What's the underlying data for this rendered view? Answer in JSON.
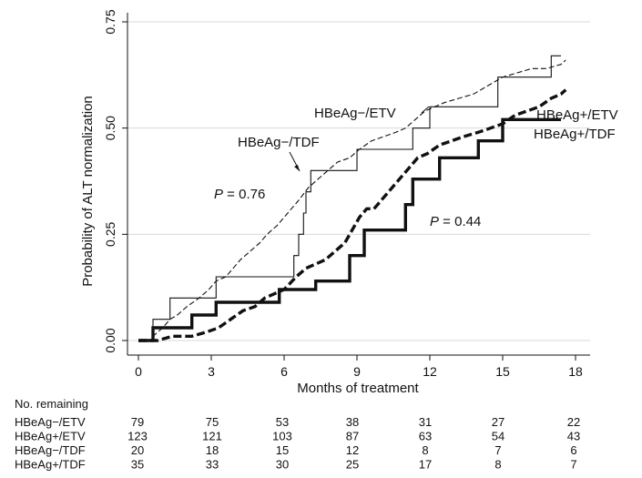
{
  "chart_data": {
    "type": "line",
    "subtype": "kaplan-meier cumulative incidence (step)",
    "xlabel": "Months of treatment",
    "ylabel": "Probability of ALT normalization",
    "xlim": [
      0,
      18
    ],
    "ylim": [
      0,
      0.75
    ],
    "x_ticks": [
      "0",
      "3",
      "6",
      "9",
      "12",
      "15",
      "18"
    ],
    "y_ticks": [
      "0.00",
      "0.25",
      "0.50",
      "0.75"
    ],
    "grid": "horizontal",
    "series": [
      {
        "name": "HBeAg−/ETV",
        "style": "thin-dashed",
        "points": [
          [
            0,
            0
          ],
          [
            0.5,
            0
          ],
          [
            0.6,
            0.01
          ],
          [
            1.0,
            0.03
          ],
          [
            1.3,
            0.05
          ],
          [
            1.6,
            0.06
          ],
          [
            2.0,
            0.08
          ],
          [
            2.5,
            0.1
          ],
          [
            2.9,
            0.12
          ],
          [
            3.2,
            0.14
          ],
          [
            3.6,
            0.15
          ],
          [
            3.9,
            0.17
          ],
          [
            4.2,
            0.19
          ],
          [
            4.6,
            0.21
          ],
          [
            5.0,
            0.23
          ],
          [
            5.3,
            0.25
          ],
          [
            5.7,
            0.27
          ],
          [
            6.0,
            0.29
          ],
          [
            6.3,
            0.31
          ],
          [
            6.6,
            0.33
          ],
          [
            7.0,
            0.36
          ],
          [
            7.4,
            0.38
          ],
          [
            7.8,
            0.4
          ],
          [
            8.2,
            0.42
          ],
          [
            8.7,
            0.43
          ],
          [
            9.1,
            0.45
          ],
          [
            9.6,
            0.47
          ],
          [
            10.1,
            0.48
          ],
          [
            10.6,
            0.49
          ],
          [
            11.0,
            0.5
          ],
          [
            11.4,
            0.52
          ],
          [
            11.8,
            0.54
          ],
          [
            12.2,
            0.55
          ],
          [
            12.6,
            0.56
          ],
          [
            13.2,
            0.57
          ],
          [
            13.8,
            0.58
          ],
          [
            14.4,
            0.6
          ],
          [
            15.0,
            0.62
          ],
          [
            15.6,
            0.63
          ],
          [
            16.2,
            0.64
          ],
          [
            16.8,
            0.64
          ],
          [
            17.4,
            0.65
          ],
          [
            17.6,
            0.66
          ]
        ]
      },
      {
        "name": "HBeAg+/ETV",
        "style": "thick-dashed",
        "points": [
          [
            0,
            0
          ],
          [
            0.8,
            0
          ],
          [
            1.4,
            0.01
          ],
          [
            2.2,
            0.01
          ],
          [
            2.8,
            0.02
          ],
          [
            3.3,
            0.03
          ],
          [
            3.8,
            0.05
          ],
          [
            4.3,
            0.07
          ],
          [
            4.8,
            0.08
          ],
          [
            5.2,
            0.1
          ],
          [
            5.6,
            0.11
          ],
          [
            6.0,
            0.12
          ],
          [
            6.5,
            0.15
          ],
          [
            6.9,
            0.17
          ],
          [
            7.3,
            0.18
          ],
          [
            7.7,
            0.19
          ],
          [
            8.1,
            0.21
          ],
          [
            8.5,
            0.23
          ],
          [
            8.8,
            0.26
          ],
          [
            9.1,
            0.29
          ],
          [
            9.4,
            0.31
          ],
          [
            9.7,
            0.31
          ],
          [
            10.0,
            0.33
          ],
          [
            10.3,
            0.35
          ],
          [
            10.6,
            0.37
          ],
          [
            10.9,
            0.39
          ],
          [
            11.2,
            0.41
          ],
          [
            11.5,
            0.43
          ],
          [
            11.9,
            0.44
          ],
          [
            12.4,
            0.46
          ],
          [
            12.9,
            0.47
          ],
          [
            13.4,
            0.48
          ],
          [
            14.0,
            0.49
          ],
          [
            14.5,
            0.5
          ],
          [
            15.0,
            0.51
          ],
          [
            15.5,
            0.53
          ],
          [
            16.0,
            0.54
          ],
          [
            16.5,
            0.55
          ],
          [
            17.0,
            0.57
          ],
          [
            17.4,
            0.58
          ],
          [
            17.6,
            0.59
          ]
        ]
      },
      {
        "name": "HBeAg−/TDF",
        "style": "thin-solid",
        "points": [
          [
            0,
            0
          ],
          [
            0.6,
            0
          ],
          [
            0.6,
            0.05
          ],
          [
            1.3,
            0.05
          ],
          [
            1.3,
            0.1
          ],
          [
            3.2,
            0.1
          ],
          [
            3.2,
            0.15
          ],
          [
            6.4,
            0.15
          ],
          [
            6.4,
            0.2
          ],
          [
            6.6,
            0.2
          ],
          [
            6.6,
            0.25
          ],
          [
            6.8,
            0.25
          ],
          [
            6.8,
            0.3
          ],
          [
            6.9,
            0.3
          ],
          [
            6.9,
            0.35
          ],
          [
            7.1,
            0.35
          ],
          [
            7.1,
            0.4
          ],
          [
            9.0,
            0.4
          ],
          [
            9.0,
            0.45
          ],
          [
            11.3,
            0.45
          ],
          [
            11.3,
            0.5
          ],
          [
            12.0,
            0.5
          ],
          [
            12.0,
            0.55
          ],
          [
            14.8,
            0.55
          ],
          [
            14.8,
            0.62
          ],
          [
            17.0,
            0.62
          ],
          [
            17.0,
            0.67
          ],
          [
            17.4,
            0.67
          ]
        ]
      },
      {
        "name": "HBeAg+/TDF",
        "style": "thick-solid",
        "points": [
          [
            0,
            0
          ],
          [
            0.6,
            0
          ],
          [
            0.6,
            0.03
          ],
          [
            2.2,
            0.03
          ],
          [
            2.2,
            0.06
          ],
          [
            3.2,
            0.06
          ],
          [
            3.2,
            0.09
          ],
          [
            5.8,
            0.09
          ],
          [
            5.8,
            0.12
          ],
          [
            7.3,
            0.12
          ],
          [
            7.3,
            0.14
          ],
          [
            8.7,
            0.14
          ],
          [
            8.7,
            0.2
          ],
          [
            9.3,
            0.2
          ],
          [
            9.3,
            0.26
          ],
          [
            11.0,
            0.26
          ],
          [
            11.0,
            0.32
          ],
          [
            11.3,
            0.32
          ],
          [
            11.3,
            0.38
          ],
          [
            12.4,
            0.38
          ],
          [
            12.4,
            0.43
          ],
          [
            14.0,
            0.43
          ],
          [
            14.0,
            0.47
          ],
          [
            15.0,
            0.47
          ],
          [
            15.0,
            0.52
          ],
          [
            17.4,
            0.52
          ]
        ]
      }
    ],
    "annotations": [
      {
        "text": "HBeAg−/ETV"
      },
      {
        "text": "HBeAg−/TDF"
      },
      {
        "text_prefix": "P",
        "text_suffix": " = 0.76"
      },
      {
        "text_prefix": "P",
        "text_suffix": " = 0.44"
      },
      {
        "text": "HBeAg+/ETV"
      },
      {
        "text": "HBeAg+/TDF"
      }
    ],
    "risk_table": {
      "title": "No. remaining",
      "rows": [
        {
          "label": "HBeAg−/ETV",
          "values": [
            "79",
            "75",
            "53",
            "38",
            "31",
            "27",
            "22"
          ]
        },
        {
          "label": "HBeAg+/ETV",
          "values": [
            "123",
            "121",
            "103",
            "87",
            "63",
            "54",
            "43"
          ]
        },
        {
          "label": "HBeAg−/TDF",
          "values": [
            "20",
            "18",
            "15",
            "12",
            "8",
            "7",
            "6"
          ]
        },
        {
          "label": "HBeAg+/TDF",
          "values": [
            "35",
            "33",
            "30",
            "25",
            "17",
            "8",
            "7"
          ]
        }
      ]
    }
  }
}
